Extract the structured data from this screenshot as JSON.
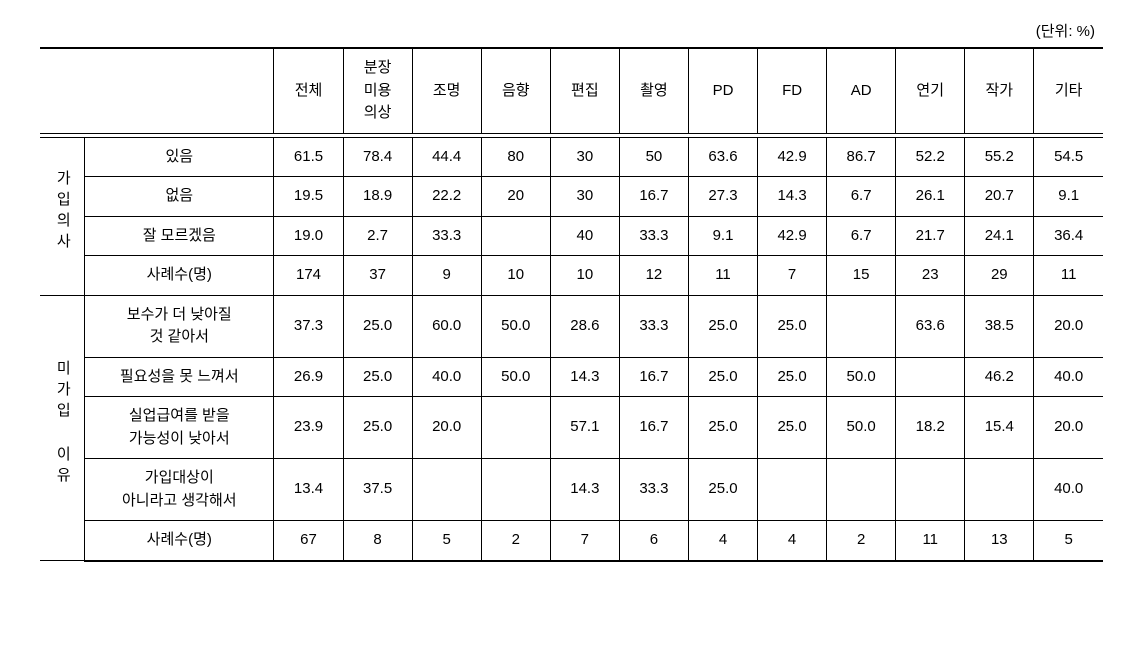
{
  "unit_label": "(단위: %)",
  "columns": [
    "전체",
    "분장\n미용\n의상",
    "조명",
    "음향",
    "편집",
    "촬영",
    "PD",
    "FD",
    "AD",
    "연기",
    "작가",
    "기타"
  ],
  "groups": [
    {
      "label": "가입의사",
      "rows": [
        {
          "label": "있음",
          "values": [
            "61.5",
            "78.4",
            "44.4",
            "80",
            "30",
            "50",
            "63.6",
            "42.9",
            "86.7",
            "52.2",
            "55.2",
            "54.5"
          ]
        },
        {
          "label": "없음",
          "values": [
            "19.5",
            "18.9",
            "22.2",
            "20",
            "30",
            "16.7",
            "27.3",
            "14.3",
            "6.7",
            "26.1",
            "20.7",
            "9.1"
          ]
        },
        {
          "label": "잘 모르겠음",
          "values": [
            "19.0",
            "2.7",
            "33.3",
            "",
            "40",
            "33.3",
            "9.1",
            "42.9",
            "6.7",
            "21.7",
            "24.1",
            "36.4"
          ]
        },
        {
          "label": "사례수(명)",
          "values": [
            "174",
            "37",
            "9",
            "10",
            "10",
            "12",
            "11",
            "7",
            "15",
            "23",
            "29",
            "11"
          ]
        }
      ]
    },
    {
      "label": "미가입 이유",
      "rows": [
        {
          "label": "보수가 더 낮아질\n것 같아서",
          "values": [
            "37.3",
            "25.0",
            "60.0",
            "50.0",
            "28.6",
            "33.3",
            "25.0",
            "25.0",
            "",
            "63.6",
            "38.5",
            "20.0"
          ]
        },
        {
          "label": "필요성을 못 느껴서",
          "values": [
            "26.9",
            "25.0",
            "40.0",
            "50.0",
            "14.3",
            "16.7",
            "25.0",
            "25.0",
            "50.0",
            "",
            "46.2",
            "40.0"
          ]
        },
        {
          "label": "실업급여를 받을\n가능성이 낮아서",
          "values": [
            "23.9",
            "25.0",
            "20.0",
            "",
            "57.1",
            "16.7",
            "25.0",
            "25.0",
            "50.0",
            "18.2",
            "15.4",
            "20.0"
          ]
        },
        {
          "label": "가입대상이\n아니라고 생각해서",
          "values": [
            "13.4",
            "37.5",
            "",
            "",
            "14.3",
            "33.3",
            "25.0",
            "",
            "",
            "",
            "",
            "40.0"
          ]
        },
        {
          "label": "사례수(명)",
          "values": [
            "67",
            "8",
            "5",
            "2",
            "7",
            "6",
            "4",
            "4",
            "2",
            "11",
            "13",
            "5"
          ]
        }
      ]
    }
  ],
  "styles": {
    "border_color": "#000000",
    "background_color": "#ffffff",
    "text_color": "#000000",
    "font_size_body": 15,
    "font_size_unit": 15,
    "top_border_width": 2,
    "bottom_border_width": 2
  }
}
